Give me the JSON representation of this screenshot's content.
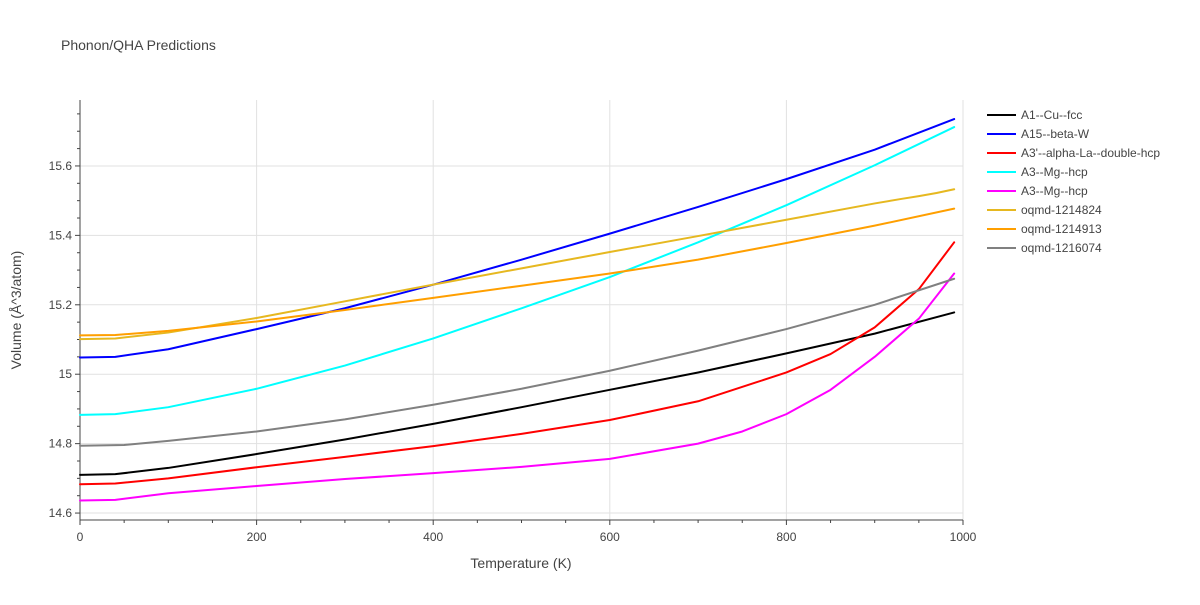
{
  "chart_data": {
    "type": "line",
    "title": "Phonon/QHA Predictions",
    "xlabel": "Temperature (K)",
    "ylabel": "Volume (Å^3/atom)",
    "xlim": [
      0,
      1000
    ],
    "ylim": [
      14.58,
      15.79
    ],
    "xticks": [
      0,
      200,
      400,
      600,
      800,
      1000
    ],
    "xtick_labels": [
      "0",
      "200",
      "400",
      "600",
      "800",
      "1000"
    ],
    "yticks": [
      14.6,
      14.8,
      15.0,
      15.2,
      15.4,
      15.6
    ],
    "ytick_labels": [
      "14.6",
      "14.8",
      "15",
      "15.2",
      "15.4",
      "15.6"
    ],
    "grid": true,
    "legend_position": "right",
    "series": [
      {
        "name": "A1--Cu--fcc",
        "color": "#000000",
        "x": [
          0,
          40,
          100,
          200,
          300,
          400,
          500,
          600,
          700,
          800,
          900,
          990
        ],
        "y": [
          14.71,
          14.712,
          14.73,
          14.77,
          14.812,
          14.857,
          14.905,
          14.955,
          15.005,
          15.06,
          15.117,
          15.178
        ]
      },
      {
        "name": "A15--beta-W",
        "color": "#0000ff",
        "x": [
          0,
          40,
          100,
          200,
          300,
          400,
          500,
          600,
          700,
          800,
          900,
          990
        ],
        "y": [
          15.048,
          15.05,
          15.072,
          15.13,
          15.19,
          15.258,
          15.33,
          15.405,
          15.482,
          15.562,
          15.647,
          15.735
        ]
      },
      {
        "name": "A3'--alpha-La--double-hcp",
        "color": "#ff0000",
        "x": [
          0,
          40,
          100,
          200,
          300,
          400,
          500,
          600,
          700,
          800,
          850,
          900,
          950,
          990
        ],
        "y": [
          14.683,
          14.685,
          14.7,
          14.732,
          14.762,
          14.793,
          14.828,
          14.868,
          14.922,
          15.005,
          15.058,
          15.135,
          15.245,
          15.38
        ]
      },
      {
        "name": "A3--Mg--hcp",
        "color": "#00ffff",
        "x": [
          0,
          40,
          100,
          200,
          300,
          400,
          500,
          600,
          700,
          800,
          900,
          990
        ],
        "y": [
          14.883,
          14.885,
          14.905,
          14.958,
          15.025,
          15.103,
          15.19,
          15.28,
          15.38,
          15.487,
          15.602,
          15.712
        ]
      },
      {
        "name": "A3--Mg--hcp",
        "color": "#ff00ff",
        "x": [
          0,
          40,
          100,
          200,
          300,
          400,
          500,
          600,
          700,
          750,
          800,
          850,
          900,
          950,
          990
        ],
        "y": [
          14.636,
          14.638,
          14.657,
          14.678,
          14.698,
          14.715,
          14.733,
          14.756,
          14.8,
          14.835,
          14.885,
          14.955,
          15.05,
          15.16,
          15.29
        ]
      },
      {
        "name": "oqmd-1214824",
        "color": "#e6b820",
        "x": [
          0,
          40,
          100,
          200,
          300,
          400,
          500,
          600,
          700,
          800,
          900,
          930,
          950,
          970,
          990
        ],
        "y": [
          15.101,
          15.103,
          15.12,
          15.162,
          15.21,
          15.258,
          15.305,
          15.352,
          15.398,
          15.445,
          15.492,
          15.505,
          15.513,
          15.522,
          15.533
        ]
      },
      {
        "name": "oqmd-1214913",
        "color": "#ff9f00",
        "x": [
          0,
          40,
          100,
          200,
          300,
          400,
          500,
          600,
          700,
          800,
          900,
          990
        ],
        "y": [
          15.112,
          15.113,
          15.125,
          15.152,
          15.185,
          15.22,
          15.255,
          15.29,
          15.33,
          15.378,
          15.428,
          15.477
        ]
      },
      {
        "name": "oqmd-1216074",
        "color": "#808080",
        "x": [
          0,
          50,
          100,
          200,
          300,
          400,
          500,
          600,
          700,
          800,
          900,
          990
        ],
        "y": [
          14.794,
          14.796,
          14.808,
          14.835,
          14.87,
          14.912,
          14.958,
          15.01,
          15.068,
          15.13,
          15.2,
          15.275
        ]
      }
    ]
  }
}
